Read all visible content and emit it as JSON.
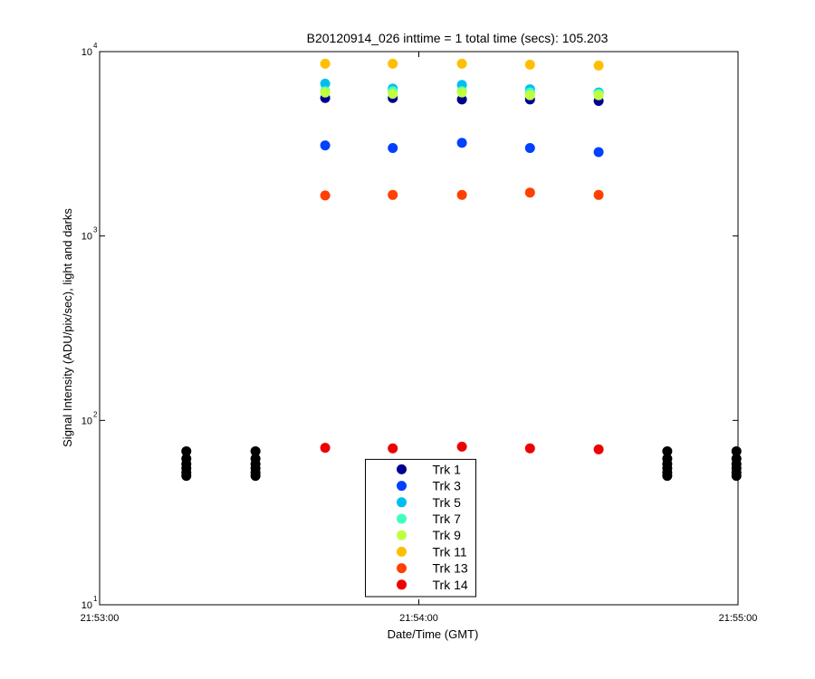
{
  "chart_data": {
    "type": "scatter",
    "title": "B20120914_026 inttime = 1 total time (secs): 105.203",
    "x_label": "Date/Time (GMT)",
    "y_label": "Signal Intensity (ADU/pix/sec), light and darks",
    "log_y": true,
    "legend": "south",
    "xlim": [
      0,
      120
    ],
    "xticks": [
      {
        "value": 0,
        "label": "21:53:00"
      },
      {
        "value": 60,
        "label": "21:54:00"
      },
      {
        "value": 120,
        "label": "21:55:00"
      }
    ],
    "ylim": [
      10,
      10000
    ],
    "yticks": [
      {
        "value": 10,
        "label": "10",
        "exponent": "1"
      },
      {
        "value": 100,
        "label": "10",
        "exponent": "2"
      },
      {
        "value": 1000,
        "label": "10",
        "exponent": "3"
      },
      {
        "value": 10000,
        "label": "10",
        "exponent": "4"
      }
    ],
    "series": [
      {
        "color": "#000000",
        "x": [
          16.3,
          16.3,
          16.3,
          16.3,
          16.3,
          16.3,
          29.3,
          29.3,
          29.3,
          29.3,
          29.3,
          29.3,
          106.7,
          106.7,
          106.7,
          106.7,
          106.7,
          106.7,
          119.7,
          119.7,
          119.7,
          119.7,
          119.7,
          119.7
        ],
        "values": [
          68,
          62,
          58,
          55,
          52,
          50,
          68,
          62,
          58,
          55,
          52,
          50,
          68,
          62,
          58,
          55,
          52,
          50,
          68,
          62,
          58,
          55,
          52,
          50
        ]
      },
      {
        "name": "Trk 1",
        "color": "#00008f",
        "x": [
          42.4,
          55.1,
          68.1,
          80.9,
          93.8
        ],
        "values": [
          5600,
          5600,
          5500,
          5500,
          5400
        ]
      },
      {
        "name": "Trk 3",
        "color": "#0040ff",
        "x": [
          42.4,
          55.1,
          68.1,
          80.9,
          93.8
        ],
        "values": [
          3100,
          3000,
          3200,
          3000,
          2850
        ]
      },
      {
        "name": "Trk 5",
        "color": "#00bff0",
        "x": [
          42.4,
          55.1,
          68.1,
          80.9,
          93.8
        ],
        "values": [
          6700,
          6300,
          6600,
          6250,
          6000
        ]
      },
      {
        "name": "Trk 7",
        "color": "#40ffbf",
        "x": [
          42.4,
          55.1,
          68.1,
          80.9,
          93.8
        ],
        "values": [
          6100,
          6100,
          6100,
          6000,
          5900
        ]
      },
      {
        "name": "Trk 9",
        "color": "#bfff40",
        "x": [
          42.4,
          55.1,
          68.1,
          80.9,
          93.8
        ],
        "values": [
          6000,
          5900,
          6000,
          5800,
          5800
        ]
      },
      {
        "name": "Trk 11",
        "color": "#ffbf00",
        "x": [
          42.4,
          55.1,
          68.1,
          80.9,
          93.8
        ],
        "values": [
          8600,
          8600,
          8600,
          8500,
          8400
        ]
      },
      {
        "name": "Trk 13",
        "color": "#ff4000",
        "x": [
          42.4,
          55.1,
          68.1,
          80.9,
          93.8
        ],
        "values": [
          1660,
          1670,
          1670,
          1720,
          1670
        ]
      },
      {
        "name": "Trk 14",
        "color": "#ee0000",
        "x": [
          42.4,
          55.1,
          68.1,
          80.9,
          93.8
        ],
        "values": [
          71,
          70.5,
          72,
          70.5,
          69.6
        ]
      }
    ]
  }
}
